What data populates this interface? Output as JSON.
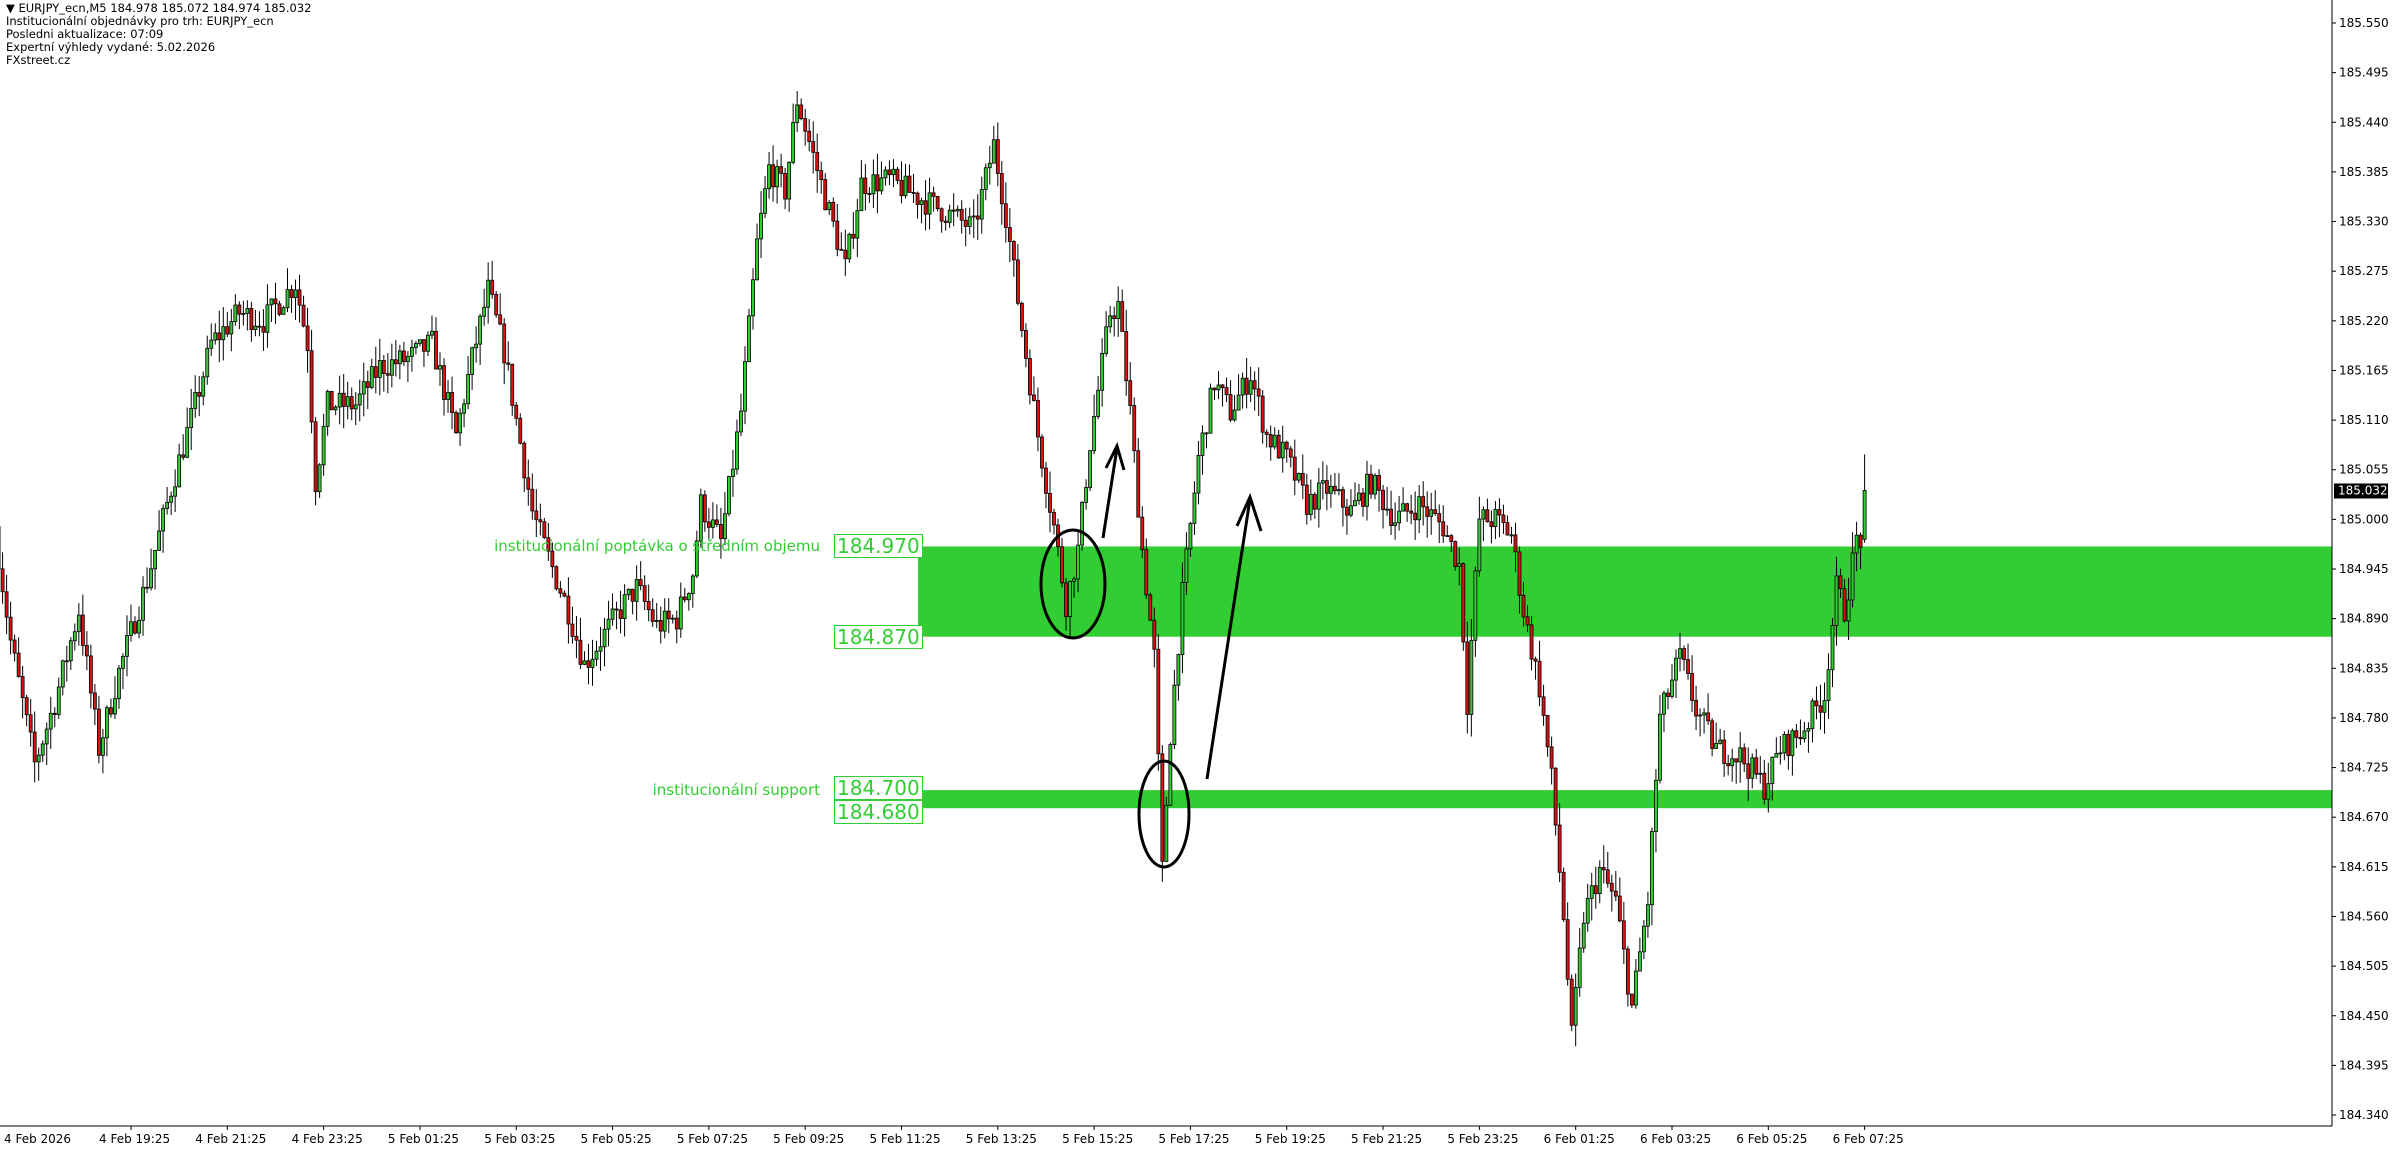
{
  "header": {
    "symbol_line": "EURJPY_ecn,M5  184.978 185.072 184.974 185.032",
    "line2": "Institucionální objednávky pro trh: EURJPY_ecn",
    "line3": "Posledni aktualizace: 07:09",
    "line4": "Expertní výhledy vydané: 5.02.2026",
    "line5": "FXstreet.cz"
  },
  "colors": {
    "bull": "#33cc33",
    "bear": "#dd1111",
    "zone": "#32cd32",
    "zone_text": "#32cd32",
    "axis": "#000000",
    "current_price_bg": "#000000"
  },
  "zones": [
    {
      "label": "institucionální poptávka o středním objemu",
      "top": 184.97,
      "bottom": 184.87,
      "top_label": "184.970",
      "bottom_label": "184.870"
    },
    {
      "label": "institucionální support",
      "top": 184.7,
      "bottom": 184.68,
      "top_label": "184.700",
      "bottom_label": "184.680"
    }
  ],
  "chart_data": {
    "type": "candlestick",
    "symbol": "EURJPY_ecn",
    "timeframe": "M5",
    "ylim": [
      184.33,
      185.575
    ],
    "y_ticks": [
      "185.550",
      "185.495",
      "185.440",
      "185.385",
      "185.330",
      "185.275",
      "185.220",
      "185.165",
      "185.110",
      "185.055",
      "185.000",
      "184.945",
      "184.890",
      "184.835",
      "184.780",
      "184.725",
      "184.670",
      "184.615",
      "184.560",
      "184.505",
      "184.450",
      "184.395",
      "184.340"
    ],
    "x_ticks": [
      "4 Feb 2026",
      "4 Feb 19:25",
      "4 Feb 21:25",
      "4 Feb 23:25",
      "5 Feb 01:25",
      "5 Feb 03:25",
      "5 Feb 05:25",
      "5 Feb 07:25",
      "5 Feb 09:25",
      "5 Feb 11:25",
      "5 Feb 13:25",
      "5 Feb 15:25",
      "5 Feb 17:25",
      "5 Feb 19:25",
      "5 Feb 21:25",
      "5 Feb 23:25",
      "6 Feb 01:25",
      "6 Feb 03:25",
      "6 Feb 05:25",
      "6 Feb 07:25"
    ],
    "current_price": "185.032",
    "last_bar": {
      "time": "6 Feb 07:25",
      "open": 184.978,
      "high": 185.072,
      "low": 184.974,
      "close": 185.032
    },
    "approx_price_path": [
      [
        "4 Feb 16:40",
        184.992
      ],
      [
        "4 Feb 17:00",
        184.865
      ],
      [
        "4 Feb 17:30",
        184.729
      ],
      [
        "4 Feb 17:55",
        184.797
      ],
      [
        "4 Feb 18:25",
        184.899
      ],
      [
        "4 Feb 18:50",
        184.746
      ],
      [
        "4 Feb 19:15",
        184.831
      ],
      [
        "4 Feb 19:50",
        184.932
      ],
      [
        "4 Feb 20:20",
        185.034
      ],
      [
        "4 Feb 20:50",
        185.127
      ],
      [
        "4 Feb 21:10",
        185.195
      ],
      [
        "4 Feb 21:45",
        185.229
      ],
      [
        "4 Feb 22:15",
        185.22
      ],
      [
        "4 Feb 22:55",
        185.262
      ],
      [
        "4 Feb 23:10",
        185.195
      ],
      [
        "4 Feb 23:20",
        185.042
      ],
      [
        "4 Feb 23:35",
        185.127
      ],
      [
        "5 Feb 00:10",
        185.127
      ],
      [
        "5 Feb 00:40",
        185.169
      ],
      [
        "5 Feb 01:15",
        185.178
      ],
      [
        "5 Feb 01:45",
        185.195
      ],
      [
        "5 Feb 02:15",
        185.093
      ],
      [
        "5 Feb 02:35",
        185.178
      ],
      [
        "5 Feb 02:55",
        185.254
      ],
      [
        "5 Feb 03:15",
        185.186
      ],
      [
        "5 Feb 03:35",
        185.085
      ],
      [
        "5 Feb 03:50",
        185.009
      ],
      [
        "5 Feb 04:10",
        184.958
      ],
      [
        "5 Feb 04:35",
        184.899
      ],
      [
        "5 Feb 04:55",
        184.839
      ],
      [
        "5 Feb 05:20",
        184.873
      ],
      [
        "5 Feb 05:45",
        184.907
      ],
      [
        "5 Feb 06:00",
        184.924
      ],
      [
        "5 Feb 06:25",
        184.882
      ],
      [
        "5 Feb 06:50",
        184.89
      ],
      [
        "5 Feb 07:10",
        184.941
      ],
      [
        "5 Feb 07:20",
        185.017
      ],
      [
        "5 Feb 07:45",
        184.975
      ],
      [
        "5 Feb 08:10",
        185.119
      ],
      [
        "5 Feb 08:30",
        185.305
      ],
      [
        "5 Feb 08:45",
        185.389
      ],
      [
        "5 Feb 09:05",
        185.364
      ],
      [
        "5 Feb 09:20",
        185.465
      ],
      [
        "5 Feb 09:50",
        185.372
      ],
      [
        "5 Feb 10:20",
        185.279
      ],
      [
        "5 Feb 10:40",
        185.372
      ],
      [
        "5 Feb 11:15",
        185.376
      ],
      [
        "5 Feb 11:55",
        185.355
      ],
      [
        "5 Feb 12:30",
        185.338
      ],
      [
        "5 Feb 13:00",
        185.322
      ],
      [
        "5 Feb 13:25",
        185.415
      ],
      [
        "5 Feb 13:40",
        185.338
      ],
      [
        "5 Feb 14:00",
        185.212
      ],
      [
        "5 Feb 14:20",
        185.093
      ],
      [
        "5 Feb 14:40",
        184.992
      ],
      [
        "5 Feb 14:55",
        184.907
      ],
      [
        "5 Feb 15:10",
        184.966
      ],
      [
        "5 Feb 15:25",
        185.085
      ],
      [
        "5 Feb 15:50",
        185.229
      ],
      [
        "5 Feb 16:00",
        185.237
      ],
      [
        "5 Feb 16:15",
        185.119
      ],
      [
        "5 Feb 16:30",
        184.966
      ],
      [
        "5 Feb 16:45",
        184.848
      ],
      [
        "5 Feb 16:55",
        184.611
      ],
      [
        "5 Feb 17:05",
        184.763
      ],
      [
        "5 Feb 17:20",
        184.916
      ],
      [
        "5 Feb 17:40",
        185.068
      ],
      [
        "5 Feb 18:00",
        185.152
      ],
      [
        "5 Feb 18:20",
        185.119
      ],
      [
        "5 Feb 18:45",
        185.161
      ],
      [
        "5 Feb 19:05",
        185.093
      ],
      [
        "5 Feb 19:30",
        185.068
      ],
      [
        "5 Feb 19:55",
        185.017
      ],
      [
        "5 Feb 20:20",
        185.034
      ],
      [
        "5 Feb 20:50",
        185.009
      ],
      [
        "5 Feb 21:15",
        185.042
      ],
      [
        "5 Feb 21:45",
        185.0
      ],
      [
        "5 Feb 22:15",
        185.017
      ],
      [
        "5 Feb 22:45",
        184.992
      ],
      [
        "5 Feb 23:05",
        184.949
      ],
      [
        "5 Feb 23:15",
        184.797
      ],
      [
        "5 Feb 23:30",
        185.0
      ],
      [
        "5 Feb 23:50",
        185.0
      ],
      [
        "6 Feb 00:10",
        184.983
      ],
      [
        "6 Feb 00:25",
        184.899
      ],
      [
        "6 Feb 00:45",
        184.814
      ],
      [
        "6 Feb 01:00",
        184.712
      ],
      [
        "6 Feb 01:15",
        184.56
      ],
      [
        "6 Feb 01:25",
        184.425
      ],
      [
        "6 Feb 01:40",
        184.56
      ],
      [
        "6 Feb 02:00",
        184.611
      ],
      [
        "6 Feb 02:20",
        184.577
      ],
      [
        "6 Feb 02:40",
        184.459
      ],
      [
        "6 Feb 03:00",
        184.577
      ],
      [
        "6 Feb 03:15",
        184.78
      ],
      [
        "6 Feb 03:40",
        184.848
      ],
      [
        "6 Feb 04:00",
        184.789
      ],
      [
        "6 Feb 04:25",
        184.746
      ],
      [
        "6 Feb 04:55",
        184.738
      ],
      [
        "6 Feb 05:25",
        184.704
      ],
      [
        "6 Feb 05:45",
        184.746
      ],
      [
        "6 Feb 06:10",
        184.763
      ],
      [
        "6 Feb 06:40",
        184.806
      ],
      [
        "6 Feb 06:55",
        184.924
      ],
      [
        "6 Feb 07:05",
        184.899
      ],
      [
        "6 Feb 07:20",
        184.978
      ]
    ]
  }
}
